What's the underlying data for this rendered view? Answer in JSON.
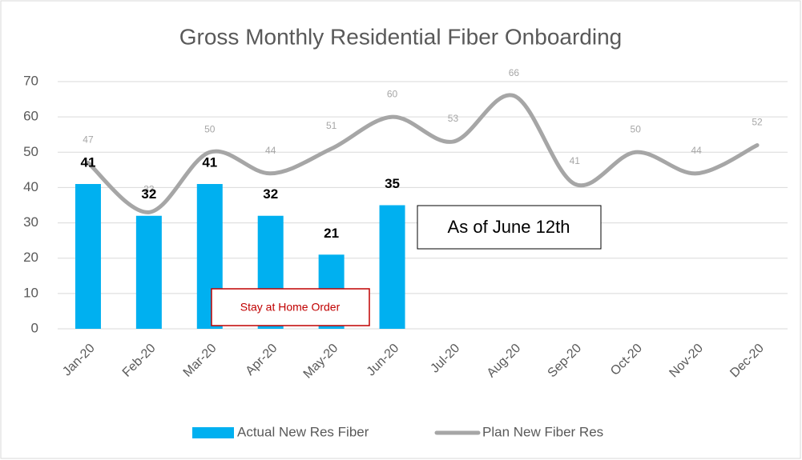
{
  "chart_data": {
    "type": "combo",
    "title": "Gross Monthly Residential Fiber Onboarding",
    "categories": [
      "Jan-20",
      "Feb-20",
      "Mar-20",
      "Apr-20",
      "May-20",
      "Jun-20",
      "Jul-20",
      "Aug-20",
      "Sep-20",
      "Oct-20",
      "Nov-20",
      "Dec-20"
    ],
    "series": [
      {
        "name": "Actual New Res Fiber",
        "type": "bar",
        "color": "#00b0f0",
        "values": [
          41,
          32,
          41,
          32,
          21,
          35,
          null,
          null,
          null,
          null,
          null,
          null
        ]
      },
      {
        "name": "Plan New Fiber Res",
        "type": "line",
        "color": "#a6a6a6",
        "values": [
          47,
          33,
          50,
          44,
          51,
          60,
          53,
          66,
          41,
          50,
          44,
          52
        ]
      }
    ],
    "ylim": [
      0,
      70
    ],
    "yticks": [
      0,
      10,
      20,
      30,
      40,
      50,
      60,
      70
    ],
    "grid": true,
    "legend": "bottom",
    "annotations": [
      "As of June 12th",
      "Stay at Home Order"
    ]
  }
}
